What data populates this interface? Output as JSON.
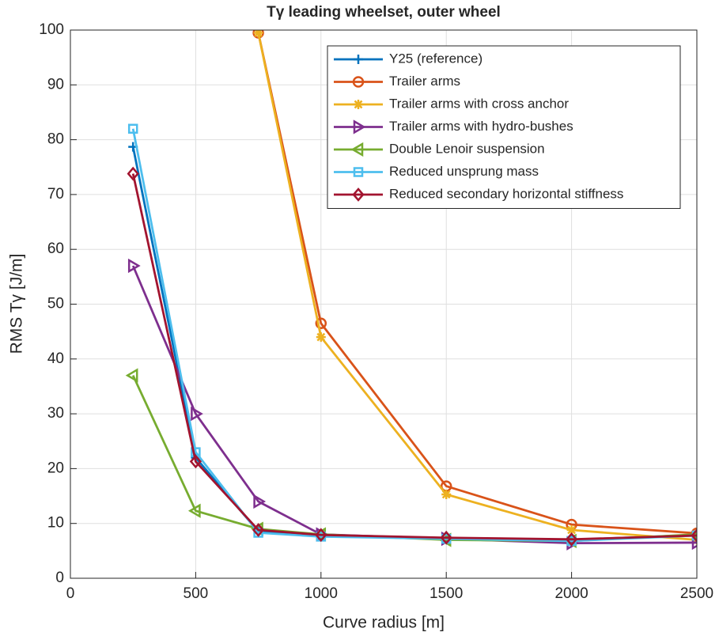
{
  "chart_data": {
    "type": "line",
    "title": "Tγ leading wheelset, outer wheel",
    "x_label": "Curve radius [m]",
    "y_label": "RMS Tγ [J/m]",
    "x": [
      250,
      500,
      750,
      1000,
      1500,
      2000,
      2500
    ],
    "series": [
      {
        "name": "Y25 (reference)",
        "color": "#0072BD",
        "marker": "plus",
        "values": [
          78.7,
          22,
          8.5,
          7.8,
          7.3,
          7,
          7.9
        ]
      },
      {
        "name": "Trailer arms",
        "color": "#D95319",
        "marker": "circle",
        "values": [
          null,
          null,
          99.5,
          46.5,
          16.8,
          9.8,
          8.2
        ]
      },
      {
        "name": "Trailer arms with cross anchor",
        "color": "#EDB120",
        "marker": "asterisk",
        "values": [
          null,
          null,
          99.5,
          44,
          15.3,
          8.8,
          7
        ]
      },
      {
        "name": "Trailer arms with hydro-bushes",
        "color": "#7E2F8E",
        "marker": "triangle-right",
        "values": [
          57,
          30,
          14,
          8,
          7.2,
          6.4,
          6.5
        ]
      },
      {
        "name": "Double Lenoir suspension",
        "color": "#77AC30",
        "marker": "triangle-left",
        "values": [
          37,
          12.3,
          9,
          8,
          7,
          6.8,
          8
        ]
      },
      {
        "name": "Reduced unsprung mass",
        "color": "#4DBEEE",
        "marker": "square",
        "values": [
          82,
          23,
          8.3,
          7.6,
          7.2,
          6.8,
          7.8
        ]
      },
      {
        "name": "Reduced secondary horizontal stiffness",
        "color": "#A2142F",
        "marker": "diamond",
        "values": [
          73.8,
          21.3,
          8.8,
          7.9,
          7.4,
          7.1,
          7.8
        ]
      }
    ],
    "xlim": [
      0,
      2500
    ],
    "xticks": [
      0,
      500,
      1000,
      1500,
      2000,
      2500
    ],
    "ylim": [
      0,
      100
    ],
    "yticks": [
      0,
      10,
      20,
      30,
      40,
      50,
      60,
      70,
      80,
      90,
      100
    ],
    "grid": true,
    "legend": "top-right"
  }
}
